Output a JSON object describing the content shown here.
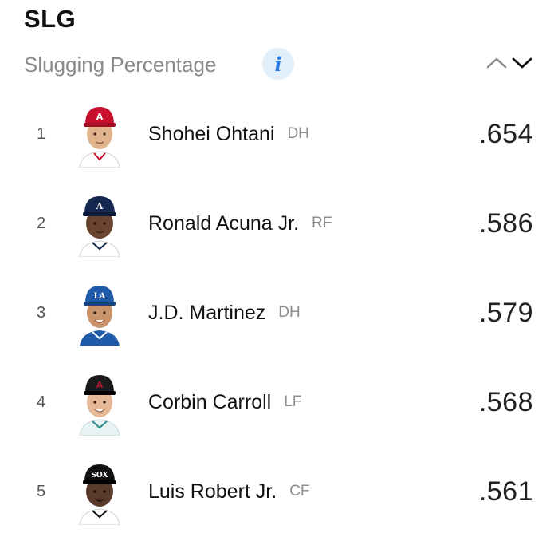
{
  "header": {
    "title": "SLG",
    "subtitle": "Slugging Percentage",
    "info_icon": "info-icon",
    "sort_icons": [
      "chevron-up-icon",
      "chevron-down-icon"
    ]
  },
  "colors": {
    "info_bg": "#e3eefb",
    "info_fg": "#2a7de1",
    "subtitle": "#8a8a8a",
    "position": "#8c8c8c"
  },
  "leaders": [
    {
      "rank": "1",
      "name": "Shohei Ohtani",
      "position": "DH",
      "value": ".654",
      "cap_color": "#c8102e",
      "jersey_color": "#ffffff",
      "skin": "#e2b48e"
    },
    {
      "rank": "2",
      "name": "Ronald Acuna Jr.",
      "position": "RF",
      "value": ".586",
      "cap_color": "#13274f",
      "jersey_color": "#ffffff",
      "skin": "#6b4430"
    },
    {
      "rank": "3",
      "name": "J.D. Martinez",
      "position": "DH",
      "value": ".579",
      "cap_color": "#1e5aa8",
      "jersey_color": "#1e5aa8",
      "skin": "#c9936b"
    },
    {
      "rank": "4",
      "name": "Corbin Carroll",
      "position": "LF",
      "value": ".568",
      "cap_color": "#1a1a1a",
      "jersey_color": "#e8f3f3",
      "skin": "#e6b896"
    },
    {
      "rank": "5",
      "name": "Luis Robert Jr.",
      "position": "CF",
      "value": ".561",
      "cap_color": "#111111",
      "jersey_color": "#ffffff",
      "skin": "#5a3a2a"
    }
  ]
}
